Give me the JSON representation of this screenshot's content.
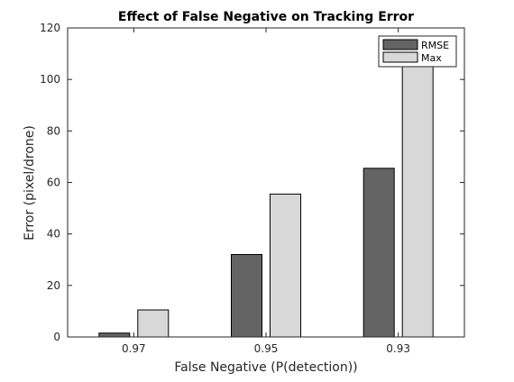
{
  "chart_data": {
    "type": "bar",
    "title": "Effect of False Negative on Tracking Error",
    "xlabel": "False Negative (P(detection))",
    "ylabel": "Error (pixel/drone)",
    "categories": [
      "0.97",
      "0.95",
      "0.93"
    ],
    "series": [
      {
        "name": "RMSE",
        "color": "#646464",
        "values": [
          1.5,
          32,
          65.5
        ]
      },
      {
        "name": "Max",
        "color": "#d8d8d8",
        "values": [
          10.5,
          55.5,
          107
        ]
      }
    ],
    "ylim": [
      0,
      120
    ],
    "yticks": [
      0,
      20,
      40,
      60,
      80,
      100,
      120
    ],
    "ytick_labels": [
      "0",
      "20",
      "40",
      "60",
      "80",
      "100",
      "120"
    ],
    "grid": false,
    "legend_position": "top-right",
    "box": true
  }
}
